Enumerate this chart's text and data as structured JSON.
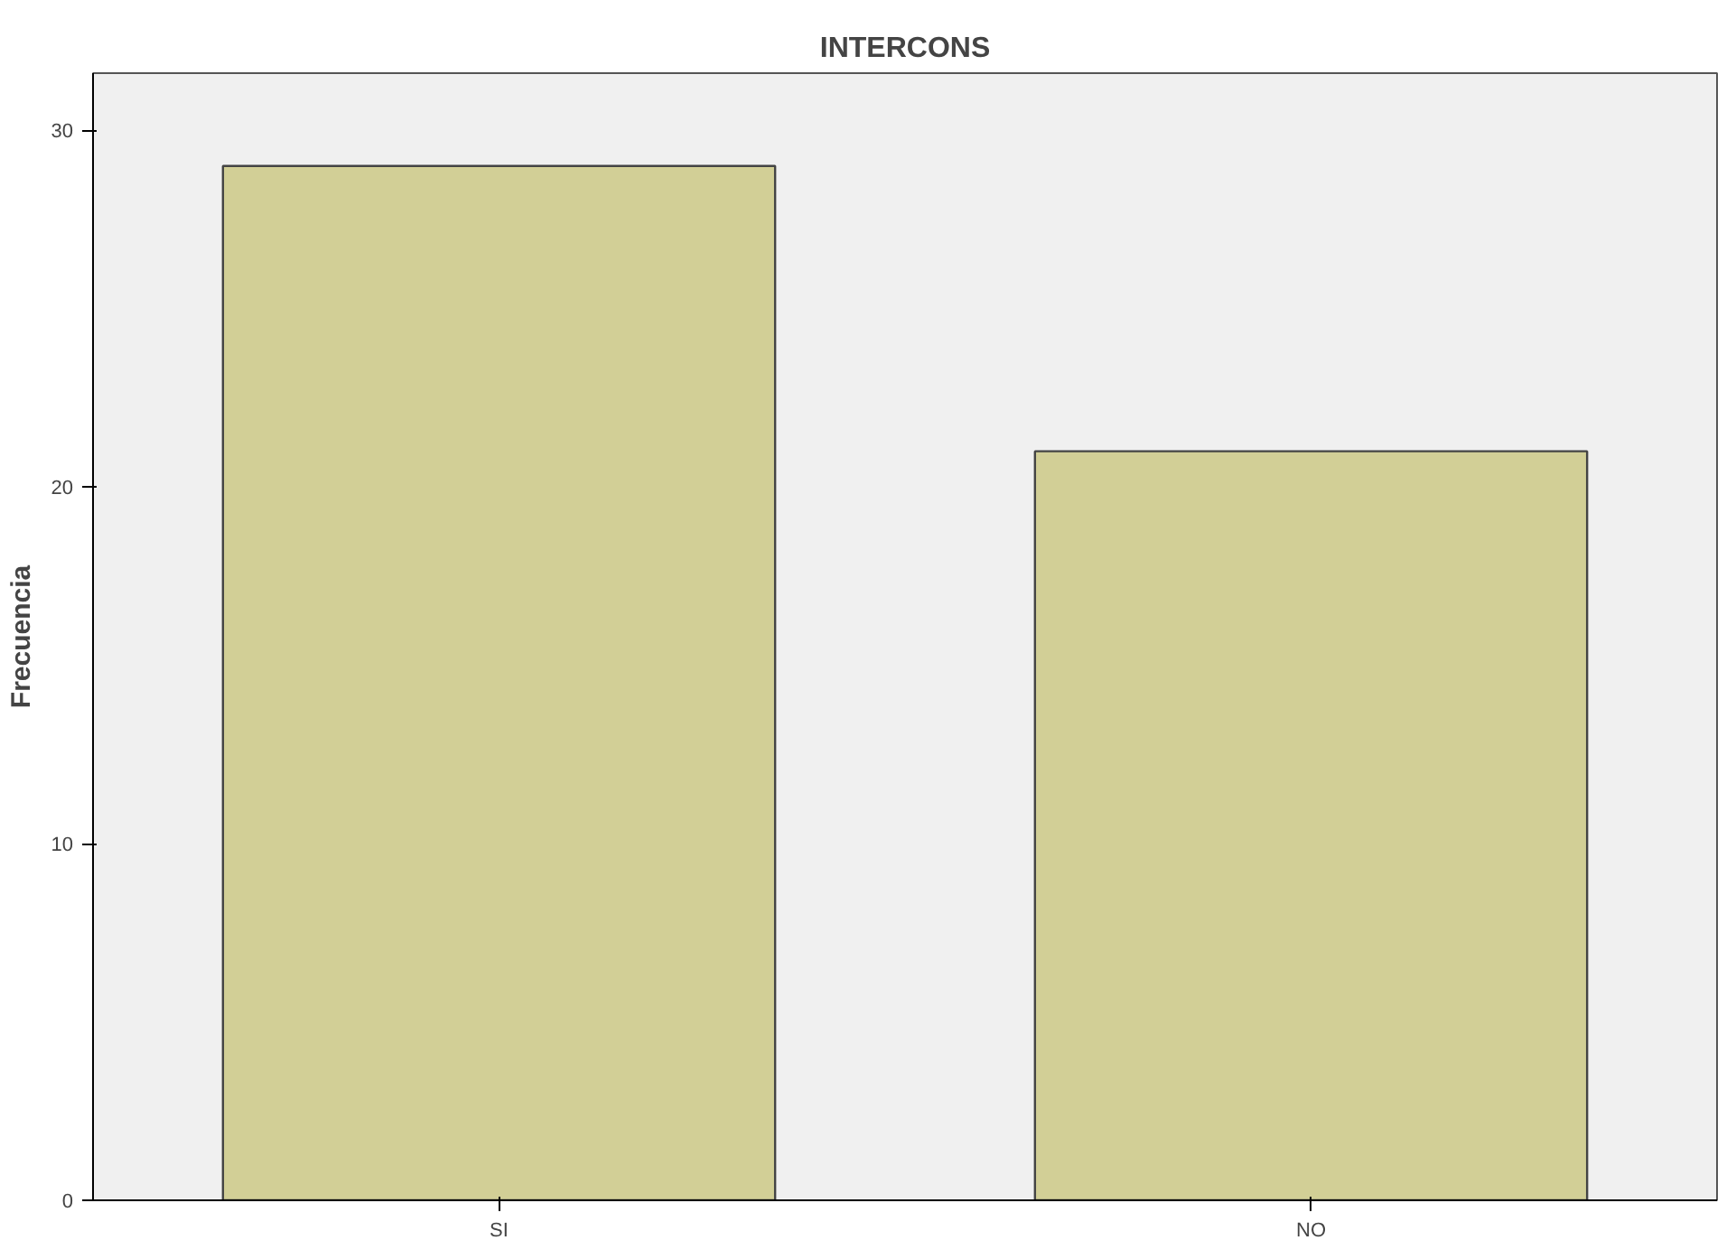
{
  "chart_data": {
    "type": "bar",
    "title": "INTERCONS",
    "ylabel": "Frecuencia",
    "categories": [
      "SI",
      "NO"
    ],
    "series": [
      {
        "color": "#d2cf96",
        "values": [
          29,
          21
        ]
      }
    ],
    "ylim": [
      0,
      31.6
    ],
    "yticks": [
      0,
      10,
      20,
      30
    ],
    "grid": false
  }
}
